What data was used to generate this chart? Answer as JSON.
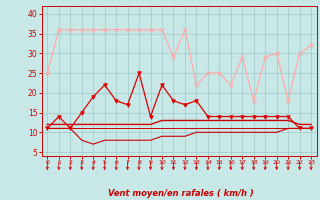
{
  "x": [
    0,
    1,
    2,
    3,
    4,
    5,
    6,
    7,
    8,
    9,
    10,
    11,
    12,
    13,
    14,
    15,
    16,
    17,
    18,
    19,
    20,
    21,
    22,
    23
  ],
  "wind_gust": [
    25,
    36,
    36,
    36,
    36,
    36,
    36,
    36,
    36,
    36,
    36,
    29,
    36,
    22,
    25,
    25,
    22,
    29,
    18,
    29,
    30,
    18,
    30,
    32
  ],
  "wind_avg": [
    11,
    14,
    11,
    15,
    19,
    22,
    18,
    17,
    25,
    14,
    22,
    18,
    17,
    18,
    14,
    14,
    14,
    14,
    14,
    14,
    14,
    14,
    11,
    11
  ],
  "wind_low": [
    11,
    11,
    11,
    8,
    7,
    8,
    8,
    8,
    8,
    8,
    9,
    9,
    9,
    10,
    10,
    10,
    10,
    10,
    10,
    10,
    10,
    11,
    11,
    11
  ],
  "wind_const1": [
    12,
    12,
    12,
    12,
    12,
    12,
    12,
    12,
    12,
    12,
    13,
    13,
    13,
    13,
    13,
    13,
    13,
    13,
    13,
    13,
    13,
    13,
    12,
    12
  ],
  "wind_const2": [
    11,
    11,
    11,
    11,
    11,
    11,
    11,
    11,
    11,
    11,
    11,
    11,
    11,
    11,
    11,
    11,
    11,
    11,
    11,
    11,
    11,
    11,
    11,
    11
  ],
  "bg_color": "#c8e8e8",
  "grid_color": "#a0c8c8",
  "line_gust_color": "#ffaaaa",
  "line_avg_color": "#dd0000",
  "line_low_color": "#cc0000",
  "line_const_color": "#cc0000",
  "arrow_color": "#cc0000",
  "xlabel": "Vent moyen/en rafales ( km/h )",
  "ylim": [
    4,
    42
  ],
  "xlim": [
    -0.5,
    23.5
  ],
  "yticks": [
    5,
    10,
    15,
    20,
    25,
    30,
    35,
    40
  ],
  "xticks": [
    0,
    1,
    2,
    3,
    4,
    5,
    6,
    7,
    8,
    9,
    10,
    11,
    12,
    13,
    14,
    15,
    16,
    17,
    18,
    19,
    20,
    21,
    22,
    23
  ]
}
